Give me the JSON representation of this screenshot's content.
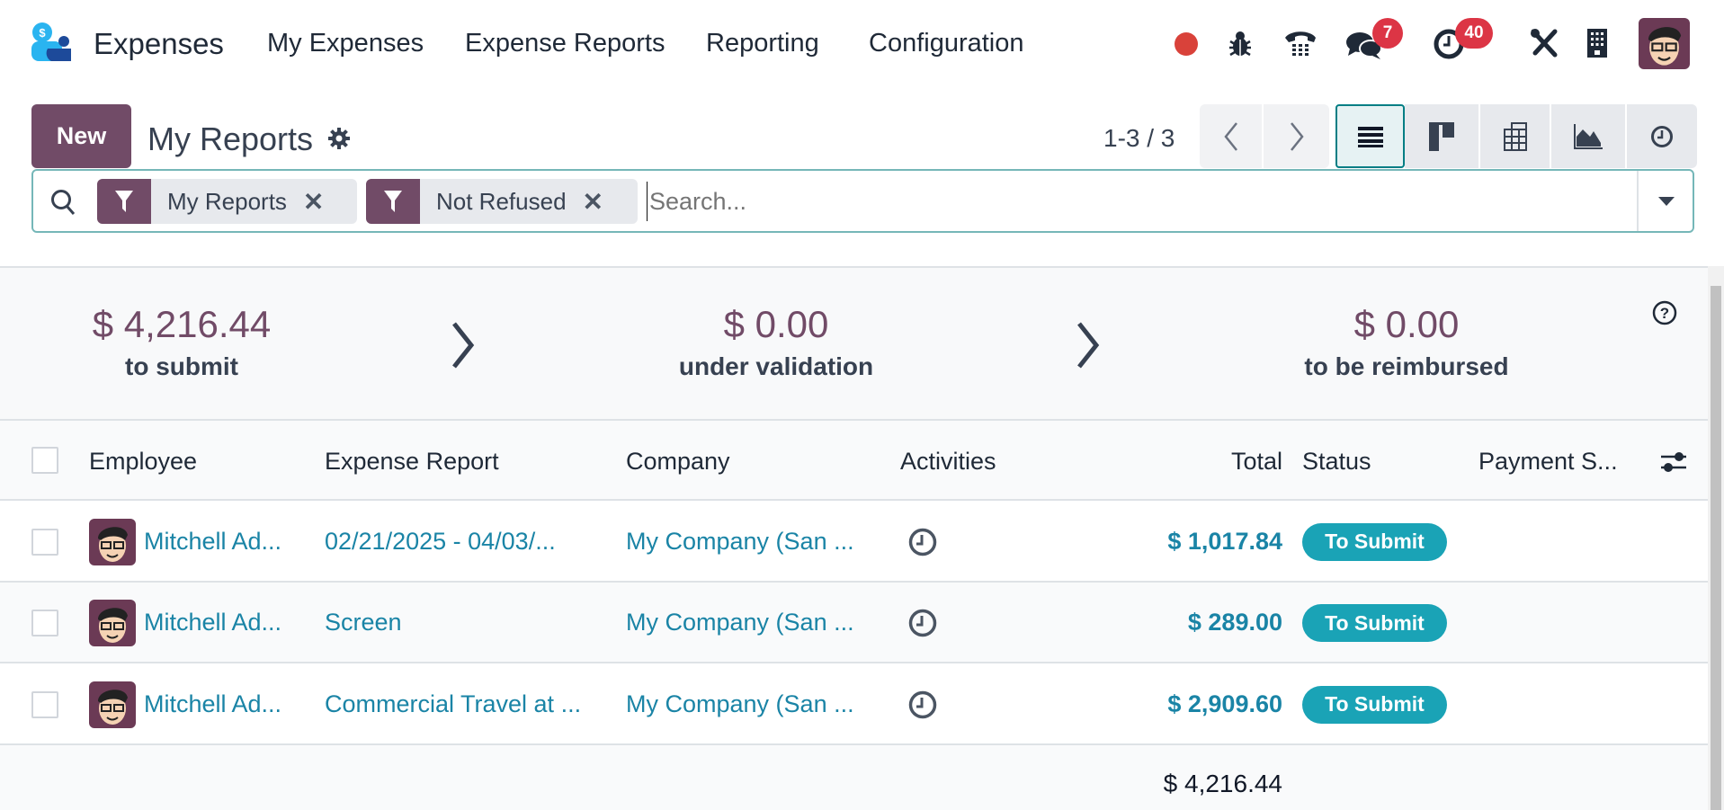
{
  "navbar": {
    "app_name": "Expenses",
    "menu": [
      "My Expenses",
      "Expense Reports",
      "Reporting",
      "Configuration"
    ],
    "messages_count": "7",
    "activities_count": "40",
    "icons": [
      "recording-dot-icon",
      "bug-icon",
      "phone-icon",
      "chat-icon",
      "clock-icon",
      "tools-icon",
      "building-icon",
      "user-avatar"
    ]
  },
  "control_panel": {
    "new_label": "New",
    "title": "My Reports",
    "pager": "1-3 / 3",
    "views": [
      "list",
      "kanban",
      "pivot",
      "graph",
      "activity"
    ],
    "active_view": "list"
  },
  "search": {
    "facets": [
      "My Reports",
      "Not Refused"
    ],
    "placeholder": "Search..."
  },
  "summary": [
    {
      "amount": "$ 4,216.44",
      "label": "to submit"
    },
    {
      "amount": "$ 0.00",
      "label": "under validation"
    },
    {
      "amount": "$ 0.00",
      "label": "to be reimbursed"
    }
  ],
  "table": {
    "columns": [
      "Employee",
      "Expense Report",
      "Company",
      "Activities",
      "Total",
      "Status",
      "Payment S..."
    ],
    "rows": [
      {
        "employee": "Mitchell Ad...",
        "report": "02/21/2025 - 04/03/...",
        "company": "My Company (San ...",
        "total": "$ 1,017.84",
        "status": "To Submit"
      },
      {
        "employee": "Mitchell Ad...",
        "report": "Screen",
        "company": "My Company (San ...",
        "total": "$ 289.00",
        "status": "To Submit"
      },
      {
        "employee": "Mitchell Ad...",
        "report": "Commercial Travel at ...",
        "company": "My Company (San ...",
        "total": "$ 2,909.60",
        "status": "To Submit"
      }
    ],
    "footer_total": "$ 4,216.44"
  },
  "colors": {
    "brand": "#714b67",
    "link": "#1a84a6",
    "status": "#1aa3b6",
    "badge": "#dc3545"
  }
}
